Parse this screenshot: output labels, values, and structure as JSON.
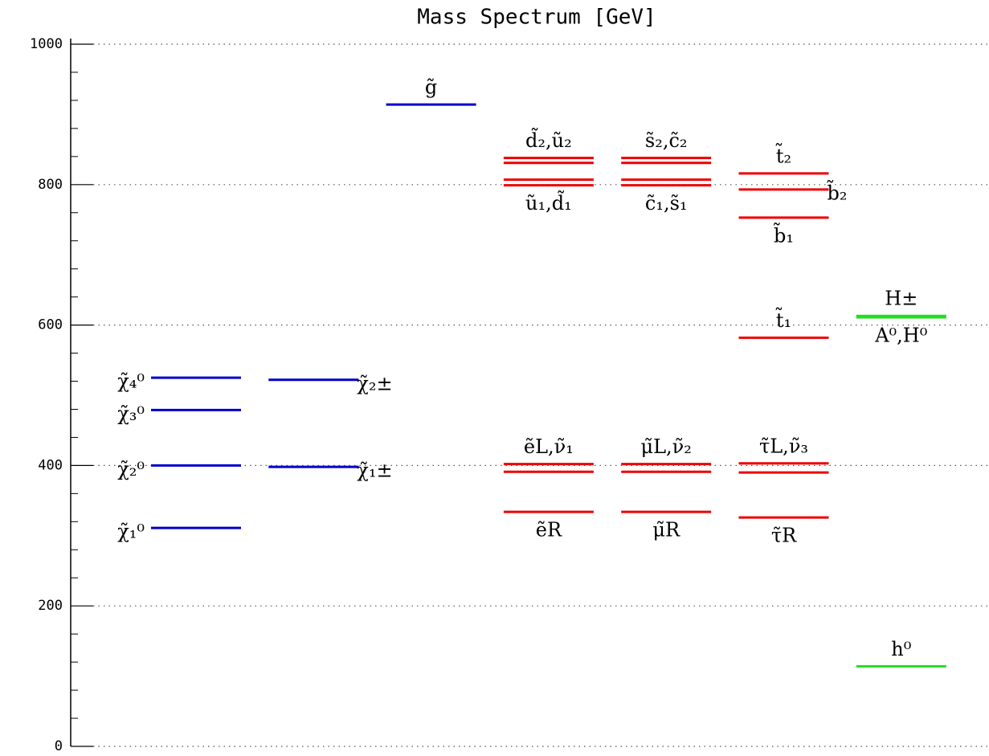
{
  "chart_data": {
    "type": "levels",
    "title": "Mass Spectrum [GeV]",
    "ylim": [
      0,
      1000
    ],
    "yticks": [
      0,
      200,
      400,
      600,
      800,
      1000
    ],
    "yminor": [
      40,
      80,
      120,
      160,
      240,
      280,
      320,
      360,
      440,
      480,
      520,
      560,
      640,
      680,
      720,
      760,
      840,
      880,
      920,
      960
    ],
    "grid": true,
    "columns": [
      {
        "levels": [
          {
            "value": 311,
            "color": "#0000cc"
          },
          {
            "value": 400,
            "color": "#0000cc"
          },
          {
            "value": 479,
            "color": "#0000cc"
          },
          {
            "value": 525,
            "color": "#0000cc"
          }
        ],
        "labels": [
          {
            "text": "χ̃₁⁰",
            "levels": [
              0
            ],
            "side": "left"
          },
          {
            "text": "χ̃₂⁰",
            "levels": [
              1
            ],
            "side": "left"
          },
          {
            "text": "χ̃₃⁰",
            "levels": [
              2
            ],
            "side": "left"
          },
          {
            "text": "χ̃₄⁰",
            "levels": [
              3
            ],
            "side": "left"
          }
        ]
      },
      {
        "levels": [
          {
            "value": 398,
            "color": "#0000cc"
          },
          {
            "value": 522,
            "color": "#0000cc"
          }
        ],
        "labels": [
          {
            "text": "χ̃₁±",
            "levels": [
              0
            ],
            "side": "right"
          },
          {
            "text": "χ̃₂±",
            "levels": [
              1
            ],
            "side": "right"
          }
        ]
      },
      {
        "levels": [
          {
            "value": 914,
            "color": "#0000cc"
          }
        ],
        "labels": [
          {
            "text": "g̃",
            "levels": [
              0
            ],
            "side": "above"
          }
        ]
      },
      {
        "levels": [
          {
            "value": 799,
            "color": "#ee0000"
          },
          {
            "value": 807,
            "color": "#ee0000"
          },
          {
            "value": 831,
            "color": "#ee0000"
          },
          {
            "value": 838,
            "color": "#ee0000"
          },
          {
            "value": 334,
            "color": "#ee0000"
          },
          {
            "value": 391,
            "color": "#ee0000"
          },
          {
            "value": 402,
            "color": "#ee0000"
          }
        ],
        "labels": [
          {
            "text": "ũ₁,d̃₁",
            "levels": [
              0,
              1
            ],
            "side": "below"
          },
          {
            "text": "d̃₂,ũ₂",
            "levels": [
              2,
              3
            ],
            "side": "above"
          },
          {
            "text": "ẽR",
            "levels": [
              4
            ],
            "side": "below"
          },
          {
            "text": "ẽL,ν̃₁",
            "levels": [
              5,
              6
            ],
            "side": "above"
          }
        ]
      },
      {
        "levels": [
          {
            "value": 799,
            "color": "#ee0000"
          },
          {
            "value": 807,
            "color": "#ee0000"
          },
          {
            "value": 831,
            "color": "#ee0000"
          },
          {
            "value": 838,
            "color": "#ee0000"
          },
          {
            "value": 334,
            "color": "#ee0000"
          },
          {
            "value": 391,
            "color": "#ee0000"
          },
          {
            "value": 402,
            "color": "#ee0000"
          }
        ],
        "labels": [
          {
            "text": "c̃₁,s̃₁",
            "levels": [
              0,
              1
            ],
            "side": "below"
          },
          {
            "text": "s̃₂,c̃₂",
            "levels": [
              2,
              3
            ],
            "side": "above"
          },
          {
            "text": "μ̃R",
            "levels": [
              4
            ],
            "side": "below"
          },
          {
            "text": "μ̃L,ν̃₂",
            "levels": [
              5,
              6
            ],
            "side": "above"
          }
        ]
      },
      {
        "levels": [
          {
            "value": 816,
            "color": "#ee0000"
          },
          {
            "value": 793,
            "color": "#ee0000"
          },
          {
            "value": 753,
            "color": "#ee0000"
          },
          {
            "value": 582,
            "color": "#ee0000"
          },
          {
            "value": 326,
            "color": "#ee0000"
          },
          {
            "value": 390,
            "color": "#ee0000"
          },
          {
            "value": 403,
            "color": "#ee0000"
          }
        ],
        "labels": [
          {
            "text": "t̃₂",
            "levels": [
              0
            ],
            "side": "above"
          },
          {
            "text": "b̃₂",
            "levels": [
              1
            ],
            "side": "right"
          },
          {
            "text": "b̃₁",
            "levels": [
              2
            ],
            "side": "below"
          },
          {
            "text": "t̃₁",
            "levels": [
              3
            ],
            "side": "above"
          },
          {
            "text": "τ̃R",
            "levels": [
              4
            ],
            "side": "below"
          },
          {
            "text": "τ̃L,ν̃₃",
            "levels": [
              5,
              6
            ],
            "side": "above"
          }
        ]
      },
      {
        "levels": [
          {
            "value": 613,
            "color": "#22dd22"
          },
          {
            "value": 611,
            "color": "#22dd22"
          },
          {
            "value": 114,
            "color": "#22dd22"
          }
        ],
        "labels": [
          {
            "text": "H±",
            "levels": [
              0
            ],
            "side": "above"
          },
          {
            "text": "A⁰,H⁰",
            "levels": [
              1
            ],
            "side": "below"
          },
          {
            "text": "h⁰",
            "levels": [
              2
            ],
            "side": "above"
          }
        ]
      }
    ]
  }
}
